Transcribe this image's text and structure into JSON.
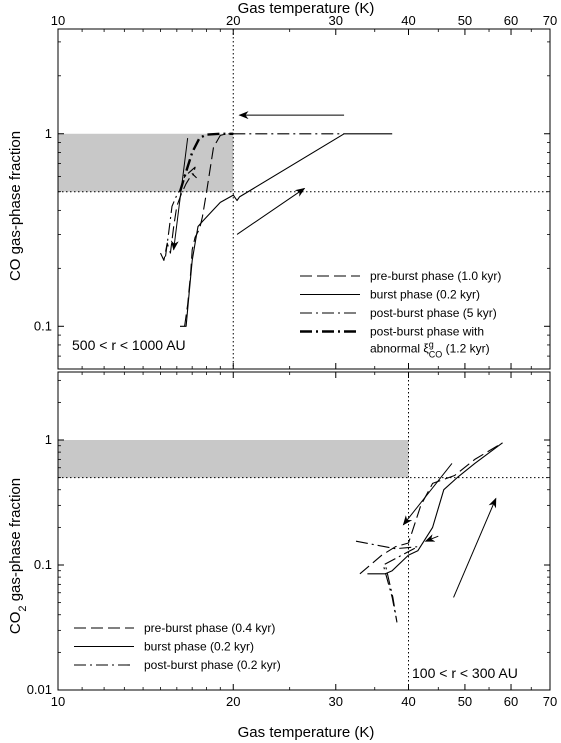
{
  "chart_data": [
    {
      "type": "line",
      "ylabel": "CO gas-phase fraction",
      "xlabel_top": "Gas temperature (K)",
      "x_scale": "log",
      "y_scale": "log",
      "xlim": [
        10,
        70
      ],
      "ylim": [
        0.06,
        3.5
      ],
      "x_ticks": [
        10,
        20,
        30,
        40,
        50,
        60,
        70
      ],
      "x_tick_labels": [
        "10",
        "20",
        "30",
        "40",
        "50",
        "60",
        "70"
      ],
      "y_ticks": [
        0.1,
        1
      ],
      "y_tick_labels": [
        "0.1",
        "1"
      ],
      "annotation": "500 < r < 1000 AU",
      "shaded_region": {
        "x": [
          10,
          20
        ],
        "y": [
          0.5,
          1.0
        ]
      },
      "reference_lines": {
        "x": 20,
        "y": 0.5
      },
      "legend": [
        {
          "label": "pre-burst phase (1.0 kyr)",
          "style": "dashed"
        },
        {
          "label": "burst phase (0.2 kyr)",
          "style": "solid"
        },
        {
          "label": "post-burst phase (5 kyr)",
          "style": "dashdot"
        },
        {
          "label_lines": [
            "post-burst phase  with",
            "abnormal ξ",
            "g",
            "CO",
            " (1.2 kyr)"
          ],
          "style": "dashdot-bold"
        }
      ],
      "series": [
        {
          "style": "dashed",
          "points": [
            [
              16.5,
              0.1
            ],
            [
              16.7,
              0.13
            ],
            [
              16.9,
              0.19
            ],
            [
              17.0,
              0.25
            ],
            [
              17.2,
              0.29
            ],
            [
              17.5,
              0.32
            ],
            [
              17.7,
              0.37
            ],
            [
              18.0,
              0.5
            ],
            [
              18.5,
              0.85
            ],
            [
              19.0,
              0.98
            ],
            [
              19.5,
              1.0
            ],
            [
              20.0,
              1.0
            ]
          ]
        },
        {
          "style": "solid",
          "points": [
            [
              16.2,
              0.1
            ],
            [
              16.6,
              0.1
            ],
            [
              16.8,
              0.15
            ],
            [
              17.0,
              0.22
            ],
            [
              17.2,
              0.27
            ],
            [
              17.4,
              0.33
            ],
            [
              17.7,
              0.35
            ],
            [
              18.3,
              0.39
            ],
            [
              19.0,
              0.44
            ],
            [
              20.0,
              0.48
            ],
            [
              20.3,
              0.45
            ],
            [
              20.5,
              0.47
            ],
            [
              31.0,
              1.0
            ],
            [
              37.5,
              1.0
            ]
          ]
        },
        {
          "style": "dashdot",
          "points": [
            [
              20.0,
              1.0
            ],
            [
              23.0,
              1.0
            ],
            [
              31.0,
              1.0
            ]
          ]
        },
        {
          "style": "dashdot-bold",
          "points": [
            [
              16.2,
              0.5
            ],
            [
              16.5,
              0.6
            ],
            [
              17.0,
              0.8
            ],
            [
              17.5,
              0.95
            ],
            [
              18.0,
              0.99
            ],
            [
              19.0,
              1.0
            ],
            [
              20.0,
              1.0
            ]
          ]
        },
        {
          "style": "dashed",
          "points": [
            [
              15.0,
              0.24
            ],
            [
              15.2,
              0.22
            ],
            [
              15.4,
              0.27
            ],
            [
              15.6,
              0.24
            ],
            [
              15.8,
              0.33
            ],
            [
              16.0,
              0.42
            ],
            [
              16.3,
              0.49
            ],
            [
              16.6,
              0.55
            ],
            [
              17.0,
              0.62
            ],
            [
              17.3,
              0.59
            ]
          ]
        },
        {
          "style": "dashdot",
          "points": [
            [
              15.3,
              0.23
            ],
            [
              15.5,
              0.31
            ],
            [
              15.7,
              0.42
            ],
            [
              16.0,
              0.48
            ],
            [
              16.3,
              0.52
            ],
            [
              16.5,
              0.6
            ],
            [
              17.2,
              0.67
            ],
            [
              17.0,
              0.58
            ]
          ]
        }
      ],
      "arrows": [
        {
          "from": [
            31.0,
            1.25
          ],
          "to": [
            20.5,
            1.25
          ]
        },
        {
          "from": [
            16.7,
            0.95
          ],
          "to": [
            15.8,
            0.25
          ]
        },
        {
          "from": [
            20.3,
            0.3
          ],
          "to": [
            26.5,
            0.52
          ]
        }
      ]
    },
    {
      "type": "line",
      "ylabel": "CO2 gas-phase fraction",
      "xlabel": "Gas temperature (K)",
      "x_scale": "log",
      "y_scale": "log",
      "xlim": [
        10,
        70
      ],
      "ylim": [
        0.01,
        3.5
      ],
      "x_ticks": [
        10,
        20,
        30,
        40,
        50,
        60,
        70
      ],
      "x_tick_labels": [
        "10",
        "20",
        "30",
        "40",
        "50",
        "60",
        "70"
      ],
      "y_ticks": [
        0.01,
        0.1,
        1
      ],
      "y_tick_labels": [
        "0.01",
        "0.1",
        "1"
      ],
      "annotation": "100 < r < 300 AU",
      "shaded_region": {
        "x": [
          10,
          40
        ],
        "y": [
          0.5,
          1.0
        ]
      },
      "reference_lines": {
        "x": 40,
        "y": 0.5
      },
      "legend": [
        {
          "label": "pre-burst phase (0.4 kyr)",
          "style": "dashed"
        },
        {
          "label": "burst phase (0.2 kyr)",
          "style": "solid"
        },
        {
          "label": "post-burst phase (0.2 kyr)",
          "style": "dashdot"
        }
      ],
      "series": [
        {
          "style": "dashed",
          "points": [
            [
              33.0,
              0.085
            ],
            [
              36.0,
              0.12
            ],
            [
              38.0,
              0.14
            ],
            [
              40.0,
              0.15
            ],
            [
              42.0,
              0.3
            ],
            [
              44.0,
              0.45
            ],
            [
              48.0,
              0.52
            ],
            [
              52.0,
              0.7
            ],
            [
              58.0,
              0.95
            ]
          ]
        },
        {
          "style": "solid",
          "points": [
            [
              34.0,
              0.085
            ],
            [
              36.5,
              0.085
            ],
            [
              37.5,
              0.09
            ],
            [
              40.0,
              0.12
            ],
            [
              41.5,
              0.13
            ],
            [
              44.0,
              0.2
            ],
            [
              46.0,
              0.4
            ],
            [
              48.5,
              0.5
            ],
            [
              52.0,
              0.65
            ],
            [
              58.0,
              0.95
            ]
          ]
        },
        {
          "style": "dashdot",
          "points": [
            [
              32.5,
              0.155
            ],
            [
              38.0,
              0.135
            ],
            [
              41.5,
              0.14
            ],
            [
              36.2,
              0.1
            ],
            [
              37.5,
              0.055
            ],
            [
              38.2,
              0.035
            ],
            [
              37.6,
              0.055
            ],
            [
              36.5,
              0.1
            ]
          ]
        }
      ],
      "arrows": [
        {
          "from": [
            47.5,
            0.65
          ],
          "to": [
            39.2,
            0.21
          ]
        },
        {
          "from": [
            45.0,
            0.17
          ],
          "to": [
            42.8,
            0.155
          ]
        },
        {
          "from": [
            47.8,
            0.055
          ],
          "to": [
            56.5,
            0.34
          ]
        }
      ]
    }
  ]
}
